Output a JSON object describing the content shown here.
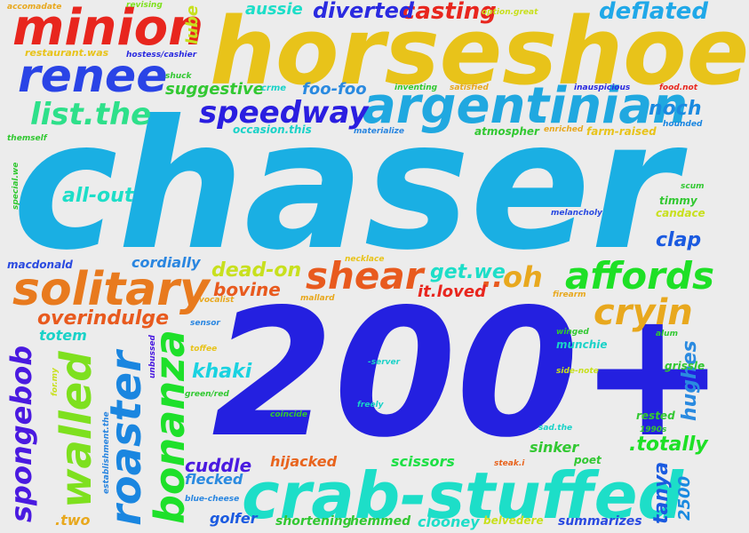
{
  "words": [
    {
      "text": "chaser",
      "color": "#1aafe3",
      "vertical": false
    },
    {
      "text": "200+",
      "color": "#2420e0",
      "vertical": false
    },
    {
      "text": "horseshoe",
      "color": "#e8c31a",
      "vertical": false
    },
    {
      "text": "crab-stuffed",
      "color": "#1ddec8",
      "vertical": false
    },
    {
      "text": "argentinian",
      "color": "#20a8e0",
      "vertical": false
    },
    {
      "text": "minion",
      "color": "#e8261e",
      "vertical": false
    },
    {
      "text": "solitary",
      "color": "#e87a1e",
      "vertical": false
    },
    {
      "text": "renee",
      "color": "#2a44e6",
      "vertical": false
    },
    {
      "text": "bonanza",
      "color": "#1ee02a",
      "vertical": true
    },
    {
      "text": "roaster",
      "color": "#1a86e0",
      "vertical": true
    },
    {
      "text": "walled",
      "color": "#7ee01e",
      "vertical": true
    },
    {
      "text": "spongebob",
      "color": "#4a1ae0",
      "vertical": true
    },
    {
      "text": "affords",
      "color": "#1ee026",
      "vertical": false
    },
    {
      "text": "shear",
      "color": "#e85a1e",
      "vertical": false
    },
    {
      "text": "cryin",
      "color": "#e8a81e",
      "vertical": false
    },
    {
      "text": "speedway",
      "color": "#2a1ee0",
      "vertical": false
    },
    {
      "text": "list.the",
      "color": "#2ee08a",
      "vertical": false
    },
    {
      "text": "deflated",
      "color": "#20a8e8",
      "vertical": false
    },
    {
      "text": "casting",
      "color": "#e8261e",
      "vertical": false
    },
    {
      "text": "diverted",
      "color": "#2a2ae0",
      "vertical": false
    },
    {
      "text": "aussie",
      "color": "#1ddec8",
      "vertical": false
    },
    {
      "text": "lube",
      "color": "#c8e01e",
      "vertical": true
    },
    {
      "text": "foo-foo",
      "color": "#2a8ae0",
      "vertical": false
    },
    {
      "text": "suggestive",
      "color": "#32c832",
      "vertical": false
    },
    {
      "text": "noch",
      "color": "#1a8ae0",
      "vertical": false
    },
    {
      "text": "all-out",
      "color": "#1ddec8",
      "vertical": false
    },
    {
      "text": "dead-on",
      "color": "#c8e01e",
      "vertical": false
    },
    {
      "text": "bovine",
      "color": "#e85a1e",
      "vertical": false
    },
    {
      "text": "get.we",
      "color": "#1ddec8",
      "vertical": false
    },
    {
      "text": "oh",
      "color": "#e8a81e",
      "vertical": false
    },
    {
      "text": "..",
      "color": "#e85a1e",
      "vertical": false
    },
    {
      "text": "it.loved",
      "color": "#e8261e",
      "vertical": false
    },
    {
      "text": "clap",
      "color": "#1a5ae0",
      "vertical": false
    },
    {
      "text": "overindulge",
      "color": "#e85a1e",
      "vertical": false
    },
    {
      "text": "totem",
      "color": "#1ad2c8",
      "vertical": false
    },
    {
      "text": "khaki",
      "color": "#1ad2e0",
      "vertical": false
    },
    {
      "text": "cordially",
      "color": "#2a86e0",
      "vertical": false
    },
    {
      "text": "macdonald",
      "color": "#2a4ae0",
      "vertical": false
    },
    {
      "text": "cuddle",
      "color": "#4a1ae0",
      "vertical": false
    },
    {
      "text": "flecked",
      "color": "#2a8ae0",
      "vertical": false
    },
    {
      "text": "hijacked",
      "color": "#e8641e",
      "vertical": false
    },
    {
      "text": "scissors",
      "color": "#1ee046",
      "vertical": false
    },
    {
      "text": ".totally",
      "color": "#1ee026",
      "vertical": false
    },
    {
      "text": "hughes",
      "color": "#2a8ae0",
      "vertical": true
    },
    {
      "text": "tanya",
      "color": "#1a5ae0",
      "vertical": true
    },
    {
      "text": "2500",
      "color": "#1a8ae0",
      "vertical": true
    },
    {
      "text": "summarizes",
      "color": "#2a4ae0",
      "vertical": false
    },
    {
      "text": "clooney",
      "color": "#1ddec8",
      "vertical": false
    },
    {
      "text": "shortening",
      "color": "#32c832",
      "vertical": false
    },
    {
      "text": "hemmed",
      "color": "#32c832",
      "vertical": false
    },
    {
      "text": "golfer",
      "color": "#1a5ae0",
      "vertical": false
    },
    {
      "text": ".two",
      "color": "#e8a81e",
      "vertical": false
    },
    {
      "text": "belvedere",
      "color": "#c8e01e",
      "vertical": false
    },
    {
      "text": "sinker",
      "color": "#32c832",
      "vertical": false
    },
    {
      "text": "poet",
      "color": "#32c832",
      "vertical": false
    },
    {
      "text": "rested",
      "color": "#32c832",
      "vertical": false
    },
    {
      "text": "grissle",
      "color": "#32c832",
      "vertical": false
    },
    {
      "text": "munchie",
      "color": "#1ad2c8",
      "vertical": false
    },
    {
      "text": "timmy",
      "color": "#32c832",
      "vertical": false
    },
    {
      "text": "candace",
      "color": "#c8e01e",
      "vertical": false
    },
    {
      "text": "atmospher",
      "color": "#32c832",
      "vertical": false
    },
    {
      "text": "occasion.this",
      "color": "#1ad2c8",
      "vertical": false
    },
    {
      "text": "farm-raised",
      "color": "#e8c31a",
      "vertical": false
    },
    {
      "text": "restaurant.was",
      "color": "#e8c31a",
      "vertical": false
    },
    {
      "text": "hostess/cashier",
      "color": "#2a2ae0",
      "vertical": false
    },
    {
      "text": "accomadate",
      "color": "#e8a81e",
      "vertical": false
    },
    {
      "text": "revising",
      "color": "#7ee01e",
      "vertical": false
    },
    {
      "text": "option.great",
      "color": "#c8e01e",
      "vertical": false
    },
    {
      "text": "shuck",
      "color": "#32c832",
      "vertical": false
    },
    {
      "text": "crme",
      "color": "#1ad2c8",
      "vertical": false
    },
    {
      "text": "inventing",
      "color": "#32c832",
      "vertical": false
    },
    {
      "text": "satisfied",
      "color": "#e8a81e",
      "vertical": false
    },
    {
      "text": "inauspicious",
      "color": "#2a2ae0",
      "vertical": false
    },
    {
      "text": "food.not",
      "color": "#e8261e",
      "vertical": false
    },
    {
      "text": "materialize",
      "color": "#2a86e0",
      "vertical": false
    },
    {
      "text": "enriched",
      "color": "#e8a81e",
      "vertical": false
    },
    {
      "text": "hounded",
      "color": "#1a86e0",
      "vertical": false
    },
    {
      "text": "themself",
      "color": "#32c832",
      "vertical": false
    },
    {
      "text": "special.we",
      "color": "#32c832",
      "vertical": true
    },
    {
      "text": "melancholy",
      "color": "#2a4ae0",
      "vertical": false
    },
    {
      "text": "scum",
      "color": "#32c832",
      "vertical": false
    },
    {
      "text": "necklace",
      "color": "#e8c31a",
      "vertical": false
    },
    {
      "text": "vocalist",
      "color": "#e8a81e",
      "vertical": false
    },
    {
      "text": "mallard",
      "color": "#e8a81e",
      "vertical": false
    },
    {
      "text": "firearm",
      "color": "#e8a81e",
      "vertical": false
    },
    {
      "text": "sensor",
      "color": "#2a86e0",
      "vertical": false
    },
    {
      "text": "unbussed",
      "color": "#4a1ae0",
      "vertical": true
    },
    {
      "text": "toffee",
      "color": "#e8c31a",
      "vertical": false
    },
    {
      "text": "winged",
      "color": "#32c832",
      "vertical": false
    },
    {
      "text": "alum",
      "color": "#32c832",
      "vertical": false
    },
    {
      "text": "-server",
      "color": "#1ad2c8",
      "vertical": false
    },
    {
      "text": "side-note",
      "color": "#c8e01e",
      "vertical": false
    },
    {
      "text": "green/red",
      "color": "#32c832",
      "vertical": false
    },
    {
      "text": "for.my",
      "color": "#c8e01e",
      "vertical": true
    },
    {
      "text": "coincide",
      "color": "#32c832",
      "vertical": false
    },
    {
      "text": "freely",
      "color": "#1ad2c8",
      "vertical": false
    },
    {
      "text": "sad.the",
      "color": "#1ad2c8",
      "vertical": false
    },
    {
      "text": "1990s",
      "color": "#32c832",
      "vertical": false
    },
    {
      "text": "establishment.the",
      "color": "#2a86e0",
      "vertical": true
    },
    {
      "text": "blue-cheese",
      "color": "#2a86e0",
      "vertical": false
    },
    {
      "text": "steak.i",
      "color": "#e8641e",
      "vertical": false
    }
  ]
}
